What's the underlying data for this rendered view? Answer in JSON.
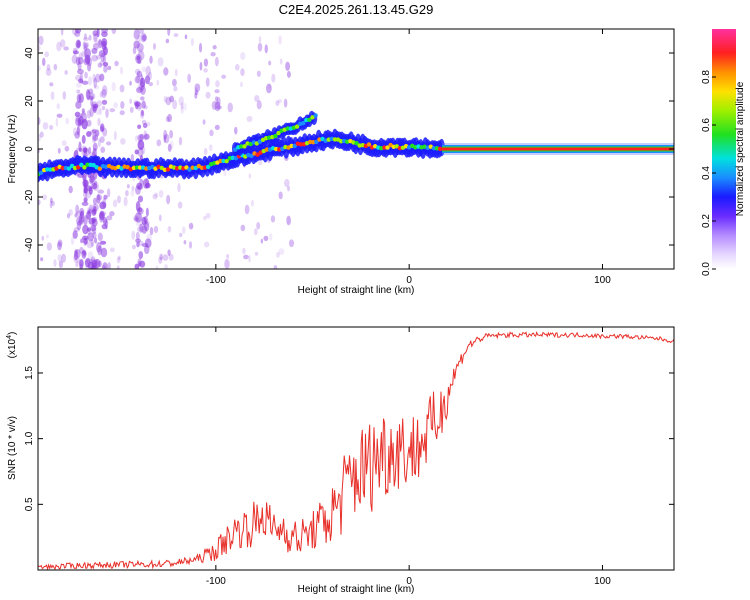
{
  "title": "C2E4.2025.261.13.45.G29",
  "colors": {
    "snr_line": "#e8302a",
    "noise": "#8a38e0",
    "axis": "#000000"
  },
  "chart_data": [
    {
      "type": "heatmap",
      "name": "spectrogram",
      "xlabel": "Height of straight line (km)",
      "ylabel": "Frequency (Hz)",
      "xlim": [
        -192,
        137
      ],
      "ylim": [
        -50,
        50
      ],
      "x_ticks": [
        -100,
        0,
        100
      ],
      "x_tick_labels": [
        "-100",
        "0",
        "100"
      ],
      "y_ticks": [
        -40,
        -20,
        0,
        20,
        40
      ],
      "y_tick_labels": [
        "-40",
        "-20",
        "0",
        "20",
        "40"
      ],
      "colorbar": {
        "label": "Normalized spectral amplitude",
        "range": [
          0,
          1
        ],
        "ticks": [
          0.0,
          0.2,
          0.4,
          0.6,
          0.8
        ],
        "tick_labels": [
          "0.0",
          "0.2",
          "0.4",
          "0.6",
          "0.8"
        ]
      },
      "main_track": [
        {
          "x": -192,
          "f": -10
        },
        {
          "x": -180,
          "f": -8
        },
        {
          "x": -170,
          "f": -7
        },
        {
          "x": -150,
          "f": -8
        },
        {
          "x": -130,
          "f": -8
        },
        {
          "x": -110,
          "f": -8
        },
        {
          "x": -100,
          "f": -6
        },
        {
          "x": -90,
          "f": -4
        },
        {
          "x": -80,
          "f": -2
        },
        {
          "x": -70,
          "f": 0
        },
        {
          "x": -60,
          "f": 1
        },
        {
          "x": -50,
          "f": 3
        },
        {
          "x": -40,
          "f": 4
        },
        {
          "x": -30,
          "f": 3
        },
        {
          "x": -20,
          "f": 1
        },
        {
          "x": -10,
          "f": 1
        },
        {
          "x": 0,
          "f": 1
        },
        {
          "x": 17,
          "f": 0
        }
      ],
      "upper_track": [
        {
          "x": -90,
          "f": 0
        },
        {
          "x": -75,
          "f": 4
        },
        {
          "x": -60,
          "f": 9
        },
        {
          "x": -48,
          "f": 14
        }
      ],
      "tone": {
        "f": 0,
        "x_start": 17,
        "x_end": 137
      },
      "noise_columns": [
        -170,
        -165,
        -160,
        -138
      ],
      "noise_band": [
        -192,
        -130
      ]
    },
    {
      "type": "line",
      "name": "snr",
      "xlabel": "Height of straight line (km)",
      "ylabel": "SNR (10 * v/v)",
      "multiplier_label": "(x10",
      "multiplier_exp": "4",
      "xlim": [
        -192,
        137
      ],
      "ylim": [
        0,
        18500
      ],
      "x_ticks": [
        -100,
        0,
        100
      ],
      "x_tick_labels": [
        "-100",
        "0",
        "100"
      ],
      "y_ticks": [
        5000,
        10000,
        15000
      ],
      "y_tick_labels": [
        "0.5",
        "1.0",
        "1.5"
      ],
      "series": [
        {
          "name": "SNR",
          "points": [
            [
              -192,
              200
            ],
            [
              -170,
              350
            ],
            [
              -150,
              400
            ],
            [
              -130,
              450
            ],
            [
              -120,
              550
            ],
            [
              -110,
              800
            ],
            [
              -100,
              1500
            ],
            [
              -95,
              2200
            ],
            [
              -90,
              3000
            ],
            [
              -85,
              3200
            ],
            [
              -80,
              3500
            ],
            [
              -75,
              4200
            ],
            [
              -70,
              3000
            ],
            [
              -65,
              3200
            ],
            [
              -60,
              2400
            ],
            [
              -55,
              2500
            ],
            [
              -50,
              3000
            ],
            [
              -45,
              3500
            ],
            [
              -40,
              4200
            ],
            [
              -35,
              5500
            ],
            [
              -30,
              7000
            ],
            [
              -25,
              7500
            ],
            [
              -20,
              8000
            ],
            [
              -15,
              9000
            ],
            [
              -10,
              9000
            ],
            [
              -5,
              9500
            ],
            [
              0,
              9000
            ],
            [
              5,
              9500
            ],
            [
              10,
              10500
            ],
            [
              15,
              11500
            ],
            [
              20,
              13500
            ],
            [
              25,
              15500
            ],
            [
              30,
              17000
            ],
            [
              35,
              17500
            ],
            [
              40,
              17800
            ],
            [
              50,
              17900
            ],
            [
              60,
              17900
            ],
            [
              70,
              17900
            ],
            [
              80,
              17900
            ],
            [
              90,
              17900
            ],
            [
              100,
              17800
            ],
            [
              110,
              17800
            ],
            [
              120,
              17700
            ],
            [
              130,
              17600
            ],
            [
              137,
              17400
            ]
          ],
          "noise_amplitude": [
            [
              -192,
              200
            ],
            [
              -110,
              300
            ],
            [
              -100,
              800
            ],
            [
              -80,
              1800
            ],
            [
              -70,
              1500
            ],
            [
              -50,
              1500
            ],
            [
              -40,
              2500
            ],
            [
              -30,
              3500
            ],
            [
              -15,
              3800
            ],
            [
              0,
              3000
            ],
            [
              15,
              2500
            ],
            [
              25,
              600
            ],
            [
              40,
              200
            ],
            [
              137,
              150
            ]
          ]
        }
      ]
    }
  ]
}
